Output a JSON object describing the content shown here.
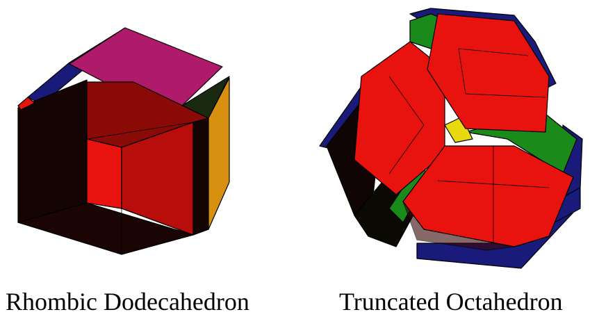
{
  "figures": [
    {
      "caption": "Rhombic Dodecahedron"
    },
    {
      "caption": "Truncated Octahedron"
    }
  ],
  "colors": {
    "red": "#e8120e",
    "dark_red": "#8a0a08",
    "black_face": "#140404",
    "navy": "#1a1a7a",
    "magenta": "#b01a6a",
    "orange": "#d89010",
    "green": "#1a8a1a",
    "yellow": "#e8d80e",
    "background": "#ffffff"
  }
}
